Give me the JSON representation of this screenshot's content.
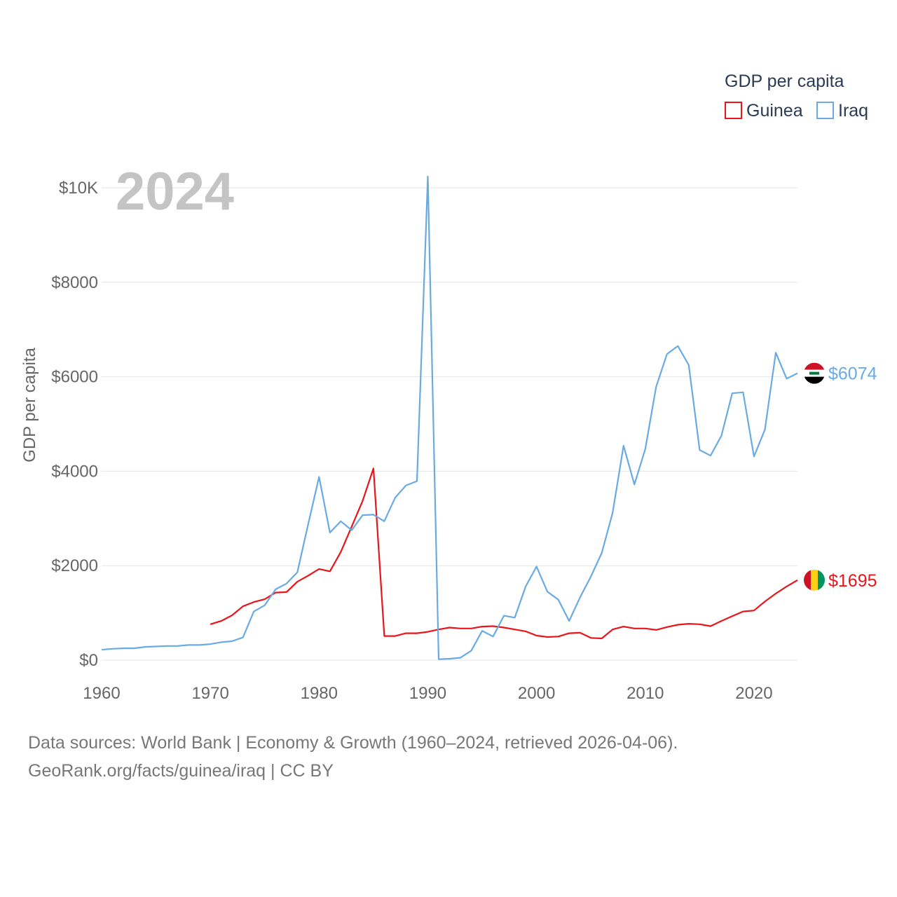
{
  "chart_data": {
    "type": "line",
    "title": "",
    "year_label": "2024",
    "legend_title": "GDP per capita",
    "ylabel": "GDP per capita",
    "xlabel": "",
    "xlim": [
      1960,
      2024
    ],
    "ylim": [
      0,
      10000
    ],
    "x_ticks": [
      1960,
      1970,
      1980,
      1990,
      2000,
      2010,
      2020
    ],
    "x_tick_labels": [
      "1960",
      "1970",
      "1980",
      "1990",
      "2000",
      "2010",
      "2020"
    ],
    "y_ticks": [
      0,
      2000,
      4000,
      6000,
      8000,
      10000
    ],
    "y_tick_labels": [
      "$0",
      "$2000",
      "$4000",
      "$6000",
      "$8000",
      "$10K"
    ],
    "grid": true,
    "series": [
      {
        "name": "Guinea",
        "color": "#e8151b",
        "end_label": "$1695",
        "flag": "guinea-flag",
        "x": [
          1970,
          1971,
          1972,
          1973,
          1974,
          1975,
          1976,
          1977,
          1978,
          1979,
          1980,
          1981,
          1982,
          1983,
          1984,
          1985,
          1986,
          1987,
          1988,
          1989,
          1990,
          1991,
          1992,
          1993,
          1994,
          1995,
          1996,
          1997,
          1998,
          1999,
          2000,
          2001,
          2002,
          2003,
          2004,
          2005,
          2006,
          2007,
          2008,
          2009,
          2010,
          2011,
          2012,
          2013,
          2014,
          2015,
          2016,
          2017,
          2018,
          2019,
          2020,
          2021,
          2022,
          2023,
          2024
        ],
        "values": [
          760,
          830,
          950,
          1140,
          1230,
          1290,
          1430,
          1440,
          1660,
          1790,
          1930,
          1880,
          2290,
          2830,
          3370,
          4060,
          510,
          510,
          570,
          570,
          600,
          650,
          690,
          670,
          670,
          710,
          720,
          690,
          650,
          610,
          520,
          490,
          500,
          570,
          580,
          470,
          460,
          650,
          710,
          670,
          670,
          640,
          700,
          750,
          770,
          760,
          720,
          830,
          930,
          1030,
          1050,
          1240,
          1410,
          1560,
          1695
        ]
      },
      {
        "name": "Iraq",
        "color": "#6aaae4",
        "end_label": "$6074",
        "flag": "iraq-flag",
        "x": [
          1960,
          1961,
          1962,
          1963,
          1964,
          1965,
          1966,
          1967,
          1968,
          1969,
          1970,
          1971,
          1972,
          1973,
          1974,
          1975,
          1976,
          1977,
          1978,
          1979,
          1980,
          1981,
          1982,
          1983,
          1984,
          1985,
          1986,
          1987,
          1988,
          1989,
          1990,
          1991,
          1992,
          1993,
          1994,
          1995,
          1996,
          1997,
          1998,
          1999,
          2000,
          2001,
          2002,
          2003,
          2004,
          2005,
          2006,
          2007,
          2008,
          2009,
          2010,
          2011,
          2012,
          2013,
          2014,
          2015,
          2016,
          2017,
          2018,
          2019,
          2020,
          2021,
          2022,
          2023,
          2024
        ],
        "values": [
          220,
          240,
          250,
          250,
          280,
          290,
          300,
          300,
          320,
          320,
          340,
          380,
          400,
          480,
          1030,
          1160,
          1500,
          1620,
          1860,
          2880,
          3880,
          2700,
          2940,
          2750,
          3070,
          3080,
          2940,
          3440,
          3700,
          3790,
          10240,
          20,
          30,
          50,
          200,
          620,
          500,
          940,
          900,
          1560,
          1980,
          1450,
          1280,
          830,
          1330,
          1770,
          2270,
          3120,
          4540,
          3720,
          4470,
          5790,
          6480,
          6650,
          6250,
          4450,
          4330,
          4750,
          5650,
          5670,
          4310,
          4880,
          6510,
          5960,
          6074
        ]
      }
    ]
  },
  "footer": {
    "line1": "Data sources: World Bank | Economy & Growth (1960–2024, retrieved 2026-04-06).",
    "line2": "GeoRank.org/facts/guinea/iraq | CC BY"
  }
}
